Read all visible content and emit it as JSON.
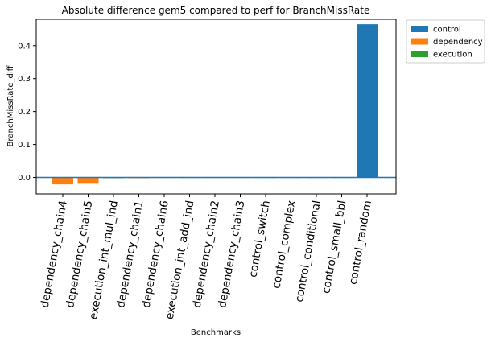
{
  "chart_data": {
    "type": "bar",
    "title": "Absolute difference gem5 compared to perf for BranchMissRate",
    "xlabel": "Benchmarks",
    "ylabel": "BranchMissRate_diff",
    "ylim": [
      -0.05,
      0.48
    ],
    "yticks": [
      "0.0",
      "0.1",
      "0.2",
      "0.3",
      "0.4"
    ],
    "ytick_values": [
      0.0,
      0.1,
      0.2,
      0.3,
      0.4
    ],
    "categories": [
      "dependency_chain4",
      "dependency_chain5",
      "execution_int_mul_ind",
      "dependency_chain1",
      "dependency_chain6",
      "execution_int_add_ind",
      "dependency_chain2",
      "dependency_chain3",
      "control_switch",
      "control_complex",
      "control_conditional",
      "control_small_bbl",
      "control_random"
    ],
    "groups": [
      "dependency",
      "dependency",
      "execution",
      "dependency",
      "dependency",
      "execution",
      "dependency",
      "dependency",
      "control",
      "control",
      "control",
      "control",
      "control"
    ],
    "values": [
      -0.021,
      -0.019,
      -0.002,
      -0.002,
      -0.001,
      -0.001,
      -0.001,
      -0.001,
      -0.001,
      -0.0005,
      -0.0005,
      -0.0005,
      0.465
    ],
    "legend": [
      {
        "name": "control",
        "color": "#1f77b4"
      },
      {
        "name": "dependency",
        "color": "#ff7f0e"
      },
      {
        "name": "execution",
        "color": "#2ca02c"
      }
    ],
    "legend_position": "outside-top-right",
    "reference_line_y": 0.0,
    "reference_line_color": "#1f77b4",
    "grid": false
  }
}
